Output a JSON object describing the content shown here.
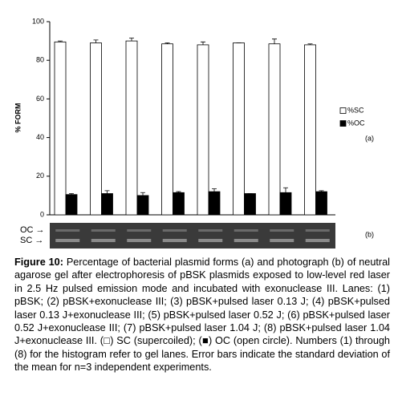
{
  "chart_data": {
    "type": "bar",
    "ylabel": "% FORM",
    "panel_label": "(a)",
    "categories": [
      null,
      null,
      null,
      null,
      null,
      null,
      null,
      null
    ],
    "series": [
      {
        "name": "%SC",
        "color": "#ffffff",
        "values": [
          89.5,
          89,
          90,
          88.5,
          88,
          89,
          88.5,
          88
        ],
        "errors": [
          0.5,
          1.5,
          1.5,
          0.5,
          1.5,
          0,
          2.5,
          0.5
        ]
      },
      {
        "name": "%OC",
        "color": "#000000",
        "values": [
          10.5,
          11,
          10,
          11.5,
          12,
          11,
          11.5,
          12
        ],
        "errors": [
          0.5,
          1.5,
          1.5,
          0.5,
          1.5,
          0,
          2.5,
          0.5
        ]
      }
    ],
    "ylim": [
      0,
      100
    ],
    "yticks": [
      0,
      20,
      40,
      60,
      80,
      100
    ]
  },
  "gel": {
    "label": "(b)",
    "bands": [
      "OC →",
      "SC →"
    ]
  },
  "caption": {
    "label": "Figure 10:",
    "text": "Percentage of bacterial plasmid forms (a) and photograph (b) of neutral agarose gel after electrophoresis of pBSK plasmids exposed to low-level red laser in 2.5 Hz pulsed emission mode and incubated with exonuclease III. Lanes: (1) pBSK; (2) pBSK+exonuclease III; (3) pBSK+pulsed laser 0.13 J; (4) pBSK+pulsed laser 0.13 J+exonuclease III; (5) pBSK+pulsed laser 0.52 J; (6) pBSK+pulsed laser 0.52 J+exonuclease III; (7) pBSK+pulsed laser 1.04 J; (8) pBSK+pulsed laser 1.04 J+exonuclease III. (□) SC (supercoiled); (■) OC (open circle). Numbers (1) through (8) for the histogram refer to gel lanes. Error bars indicate the standard deviation of the mean for n=3 independent experiments."
  }
}
